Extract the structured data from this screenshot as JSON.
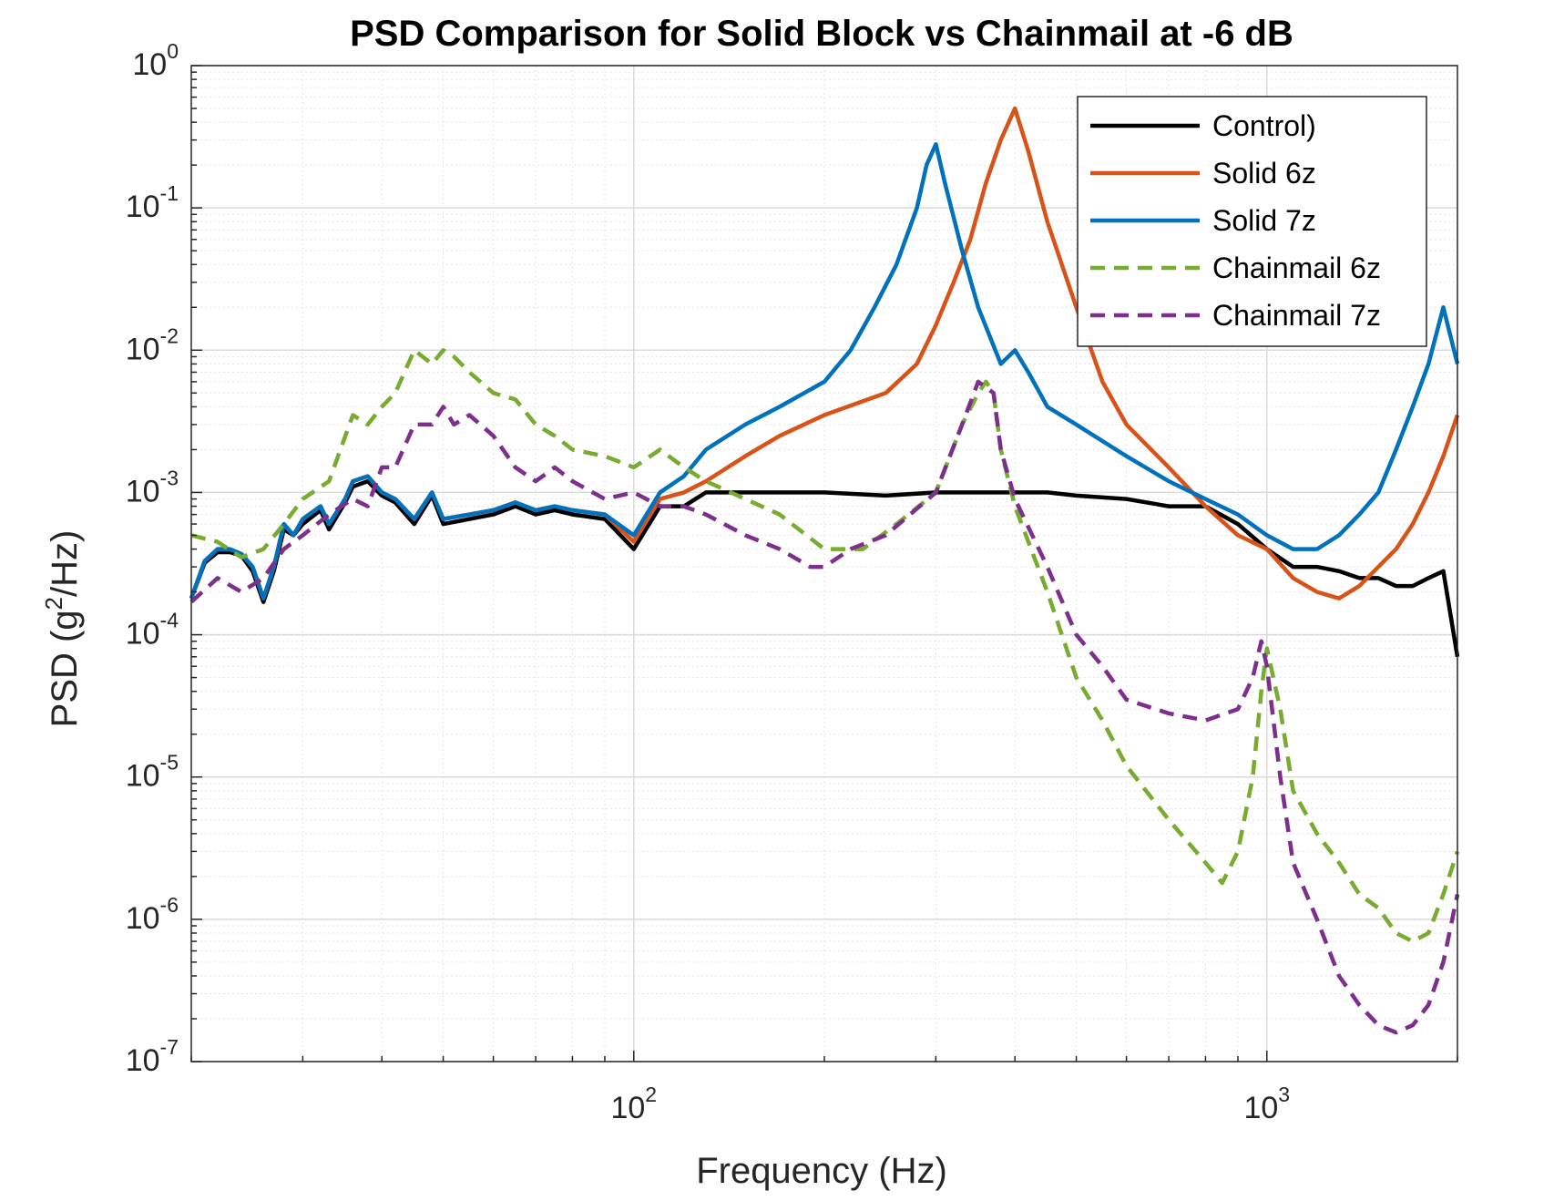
{
  "chart_data": {
    "type": "line",
    "title": "PSD Comparison for Solid Block vs Chainmail at -6 dB",
    "xlabel": "Frequency (Hz)",
    "ylabel_prefix": "PSD (g",
    "ylabel_sup": "2",
    "ylabel_suffix": "/Hz)",
    "x_scale": "log",
    "y_scale": "log",
    "xlim": [
      20,
      2000
    ],
    "ylim": [
      1e-07,
      1
    ],
    "grid": true,
    "minor_grid": true,
    "legend_position": "top-right",
    "x_ticks": [
      {
        "value": 100,
        "base": "10",
        "exp": "2"
      },
      {
        "value": 1000,
        "base": "10",
        "exp": "3"
      }
    ],
    "y_ticks": [
      {
        "value": 1,
        "base": "10",
        "exp": "0"
      },
      {
        "value": 0.1,
        "base": "10",
        "exp": "-1"
      },
      {
        "value": 0.01,
        "base": "10",
        "exp": "-2"
      },
      {
        "value": 0.001,
        "base": "10",
        "exp": "-3"
      },
      {
        "value": 0.0001,
        "base": "10",
        "exp": "-4"
      },
      {
        "value": 1e-05,
        "base": "10",
        "exp": "-5"
      },
      {
        "value": 1e-06,
        "base": "10",
        "exp": "-6"
      },
      {
        "value": 1e-07,
        "base": "10",
        "exp": "-7"
      }
    ],
    "series": [
      {
        "name": "Control)",
        "color": "#000000",
        "dash": "solid",
        "x": [
          20,
          21,
          22,
          23,
          24,
          25,
          26,
          27,
          28,
          29,
          30,
          32,
          33,
          35,
          36,
          38,
          40,
          42,
          45,
          48,
          50,
          55,
          60,
          65,
          70,
          75,
          80,
          90,
          100,
          110,
          120,
          130,
          150,
          170,
          200,
          250,
          300,
          350,
          400,
          450,
          500,
          600,
          700,
          800,
          900,
          1000,
          1100,
          1200,
          1300,
          1400,
          1500,
          1600,
          1700,
          1800,
          1900,
          2000
        ],
        "y": [
          0.00018,
          0.00032,
          0.00038,
          0.00038,
          0.00036,
          0.00028,
          0.00017,
          0.00028,
          0.00055,
          0.0005,
          0.0006,
          0.00075,
          0.00055,
          0.00085,
          0.0011,
          0.0012,
          0.00095,
          0.00085,
          0.0006,
          0.00095,
          0.0006,
          0.00065,
          0.0007,
          0.0008,
          0.0007,
          0.00075,
          0.0007,
          0.00065,
          0.0004,
          0.0008,
          0.0008,
          0.001,
          0.001,
          0.001,
          0.001,
          0.00095,
          0.001,
          0.001,
          0.001,
          0.001,
          0.00095,
          0.0009,
          0.0008,
          0.0008,
          0.0006,
          0.0004,
          0.0003,
          0.0003,
          0.00028,
          0.00025,
          0.00025,
          0.00022,
          0.00022,
          0.00025,
          0.00028,
          7e-05
        ]
      },
      {
        "name": "Solid 6z",
        "color": "#d95319",
        "dash": "solid",
        "x": [
          20,
          21,
          22,
          23,
          24,
          25,
          26,
          27,
          28,
          29,
          30,
          32,
          33,
          35,
          36,
          38,
          40,
          42,
          45,
          48,
          50,
          55,
          60,
          65,
          70,
          75,
          80,
          90,
          100,
          110,
          120,
          130,
          150,
          170,
          200,
          250,
          280,
          300,
          320,
          340,
          360,
          380,
          400,
          420,
          450,
          500,
          550,
          600,
          700,
          800,
          900,
          1000,
          1100,
          1200,
          1300,
          1400,
          1500,
          1600,
          1700,
          1800,
          1900,
          2000
        ],
        "y": [
          0.00018,
          0.00033,
          0.0004,
          0.0004,
          0.00037,
          0.0003,
          0.00018,
          0.0003,
          0.0006,
          0.0005,
          0.00065,
          0.0008,
          0.0006,
          0.0009,
          0.0012,
          0.0013,
          0.001,
          0.0009,
          0.00065,
          0.001,
          0.00065,
          0.0007,
          0.00075,
          0.00085,
          0.00075,
          0.0008,
          0.00075,
          0.0007,
          0.00045,
          0.0009,
          0.001,
          0.0012,
          0.0018,
          0.0025,
          0.0035,
          0.005,
          0.008,
          0.015,
          0.03,
          0.06,
          0.15,
          0.3,
          0.5,
          0.25,
          0.08,
          0.02,
          0.006,
          0.003,
          0.0015,
          0.0008,
          0.0005,
          0.0004,
          0.00025,
          0.0002,
          0.00018,
          0.00022,
          0.0003,
          0.0004,
          0.0006,
          0.001,
          0.0018,
          0.0035
        ]
      },
      {
        "name": "Solid 7z",
        "color": "#0072bd",
        "dash": "solid",
        "x": [
          20,
          21,
          22,
          23,
          24,
          25,
          26,
          27,
          28,
          29,
          30,
          32,
          33,
          35,
          36,
          38,
          40,
          42,
          45,
          48,
          50,
          55,
          60,
          65,
          70,
          75,
          80,
          90,
          100,
          110,
          120,
          130,
          150,
          170,
          200,
          220,
          240,
          260,
          280,
          290,
          300,
          310,
          330,
          350,
          380,
          400,
          420,
          450,
          500,
          600,
          700,
          800,
          900,
          1000,
          1100,
          1200,
          1300,
          1400,
          1500,
          1600,
          1700,
          1800,
          1900,
          2000
        ],
        "y": [
          0.00018,
          0.00033,
          0.0004,
          0.0004,
          0.00037,
          0.0003,
          0.00018,
          0.0003,
          0.0006,
          0.0005,
          0.00065,
          0.0008,
          0.0006,
          0.0009,
          0.0012,
          0.0013,
          0.001,
          0.0009,
          0.00065,
          0.001,
          0.00065,
          0.0007,
          0.00075,
          0.00085,
          0.00075,
          0.0008,
          0.00075,
          0.0007,
          0.0005,
          0.001,
          0.0013,
          0.002,
          0.003,
          0.004,
          0.006,
          0.01,
          0.02,
          0.04,
          0.1,
          0.2,
          0.28,
          0.15,
          0.05,
          0.02,
          0.008,
          0.01,
          0.007,
          0.004,
          0.003,
          0.0018,
          0.0012,
          0.0009,
          0.0007,
          0.0005,
          0.0004,
          0.0004,
          0.0005,
          0.0007,
          0.001,
          0.002,
          0.004,
          0.008,
          0.02,
          0.008
        ]
      },
      {
        "name": "Chainmail 6z",
        "color": "#77ac30",
        "dash": "dashed",
        "x": [
          20,
          22,
          24,
          26,
          28,
          30,
          33,
          36,
          38,
          40,
          42,
          45,
          48,
          50,
          52,
          55,
          60,
          65,
          70,
          75,
          80,
          90,
          100,
          110,
          120,
          130,
          150,
          170,
          200,
          230,
          260,
          300,
          330,
          350,
          360,
          370,
          380,
          400,
          450,
          500,
          550,
          600,
          700,
          800,
          850,
          900,
          950,
          980,
          1000,
          1050,
          1100,
          1200,
          1300,
          1400,
          1500,
          1600,
          1700,
          1800,
          1900,
          2000
        ],
        "y": [
          0.0005,
          0.00045,
          0.00035,
          0.0004,
          0.0006,
          0.0009,
          0.0012,
          0.0035,
          0.003,
          0.004,
          0.005,
          0.01,
          0.008,
          0.01,
          0.009,
          0.007,
          0.005,
          0.0045,
          0.003,
          0.0025,
          0.002,
          0.0018,
          0.0015,
          0.002,
          0.0015,
          0.0012,
          0.0009,
          0.0007,
          0.0004,
          0.0004,
          0.0006,
          0.001,
          0.003,
          0.005,
          0.006,
          0.005,
          0.002,
          0.0008,
          0.0002,
          5e-05,
          2.5e-05,
          1.2e-05,
          5e-06,
          2.5e-06,
          1.8e-06,
          3e-06,
          1e-05,
          4e-05,
          8e-05,
          3e-05,
          8e-06,
          4e-06,
          2.5e-06,
          1.5e-06,
          1.2e-06,
          8e-07,
          7e-07,
          8e-07,
          1.5e-06,
          3e-06
        ]
      },
      {
        "name": "Chainmail 7z",
        "color": "#7e2f8e",
        "dash": "dashed",
        "x": [
          20,
          22,
          24,
          26,
          28,
          30,
          33,
          36,
          38,
          40,
          42,
          45,
          48,
          50,
          52,
          55,
          60,
          65,
          70,
          75,
          80,
          90,
          100,
          110,
          120,
          130,
          150,
          170,
          190,
          200,
          220,
          250,
          300,
          330,
          350,
          370,
          380,
          400,
          450,
          500,
          550,
          600,
          700,
          800,
          900,
          950,
          980,
          1000,
          1050,
          1100,
          1200,
          1300,
          1400,
          1500,
          1600,
          1700,
          1800,
          1900,
          2000
        ],
        "y": [
          0.00017,
          0.00025,
          0.0002,
          0.00025,
          0.0004,
          0.0005,
          0.0007,
          0.0009,
          0.0008,
          0.0015,
          0.0015,
          0.003,
          0.003,
          0.004,
          0.003,
          0.0035,
          0.0025,
          0.0015,
          0.0012,
          0.0015,
          0.0012,
          0.0009,
          0.001,
          0.0008,
          0.0008,
          0.0007,
          0.0005,
          0.0004,
          0.0003,
          0.0003,
          0.0004,
          0.0005,
          0.001,
          0.003,
          0.006,
          0.005,
          0.002,
          0.0009,
          0.0003,
          0.0001,
          6e-05,
          3.5e-05,
          2.8e-05,
          2.5e-05,
          3e-05,
          5e-05,
          9e-05,
          6e-05,
          1e-05,
          2.5e-06,
          1e-06,
          4e-07,
          2.5e-07,
          1.8e-07,
          1.6e-07,
          1.8e-07,
          2.5e-07,
          5e-07,
          1.5e-06
        ]
      }
    ]
  }
}
